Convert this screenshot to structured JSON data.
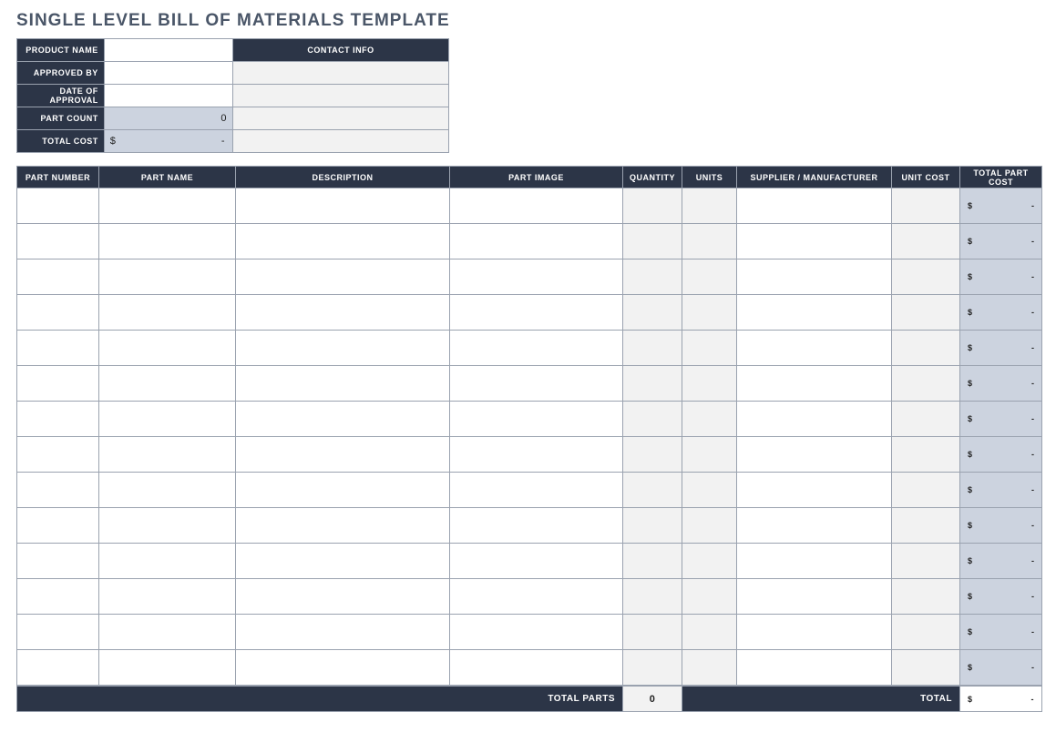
{
  "title": "SINGLE LEVEL BILL OF MATERIALS TEMPLATE",
  "colors": {
    "header_bg": "#2c3547",
    "header_text": "#ffffff",
    "title_text": "#4a5668",
    "cell_grey": "#f2f2f2",
    "cell_blue": "#ccd3df",
    "border": "#9aa2af"
  },
  "summary": {
    "labels": {
      "product_name": "PRODUCT NAME",
      "contact_info": "CONTACT INFO",
      "approved_by": "APPROVED BY",
      "date_of_approval": "DATE OF APPROVAL",
      "part_count": "PART COUNT",
      "total_cost": "TOTAL COST"
    },
    "values": {
      "product_name": "",
      "contact_info": "",
      "approved_by": "",
      "date_of_approval": "",
      "part_count": "0",
      "total_cost_currency": "$",
      "total_cost_amount": "-"
    }
  },
  "columns": [
    "PART NUMBER",
    "PART NAME",
    "DESCRIPTION",
    "PART IMAGE",
    "QUANTITY",
    "UNITS",
    "SUPPLIER  /  MANUFACTURER",
    "UNIT COST",
    "TOTAL PART COST"
  ],
  "rows": [
    {
      "total_currency": "$",
      "total_amount": "-"
    },
    {
      "total_currency": "$",
      "total_amount": "-"
    },
    {
      "total_currency": "$",
      "total_amount": "-"
    },
    {
      "total_currency": "$",
      "total_amount": "-"
    },
    {
      "total_currency": "$",
      "total_amount": "-"
    },
    {
      "total_currency": "$",
      "total_amount": "-"
    },
    {
      "total_currency": "$",
      "total_amount": "-"
    },
    {
      "total_currency": "$",
      "total_amount": "-"
    },
    {
      "total_currency": "$",
      "total_amount": "-"
    },
    {
      "total_currency": "$",
      "total_amount": "-"
    },
    {
      "total_currency": "$",
      "total_amount": "-"
    },
    {
      "total_currency": "$",
      "total_amount": "-"
    },
    {
      "total_currency": "$",
      "total_amount": "-"
    },
    {
      "total_currency": "$",
      "total_amount": "-"
    }
  ],
  "footer": {
    "total_parts_label": "TOTAL PARTS",
    "total_parts_value": "0",
    "total_label": "TOTAL",
    "total_currency": "$",
    "total_amount": "-"
  }
}
